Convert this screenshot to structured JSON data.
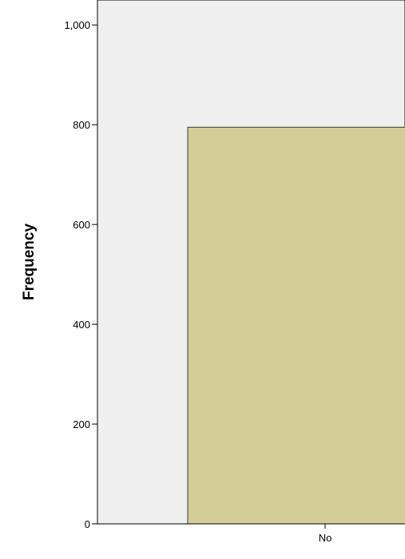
{
  "chart_data": {
    "type": "bar",
    "categories": [
      "No"
    ],
    "values": [
      795
    ],
    "title": "",
    "xlabel": "",
    "ylabel": "Frequency",
    "ylim": [
      0,
      1050
    ],
    "yticks": [
      {
        "value": 0,
        "label": "0"
      },
      {
        "value": 200,
        "label": "200"
      },
      {
        "value": 400,
        "label": "400"
      },
      {
        "value": 600,
        "label": "600"
      },
      {
        "value": 800,
        "label": "800"
      },
      {
        "value": 1000,
        "label": "1,000"
      }
    ],
    "grid": false,
    "legend": "none",
    "colors": {
      "plot_background": "#f0f0f0",
      "bar_fill": "#d3ce97",
      "bar_stroke": "#3a3a3a",
      "axis": "#000000"
    }
  }
}
